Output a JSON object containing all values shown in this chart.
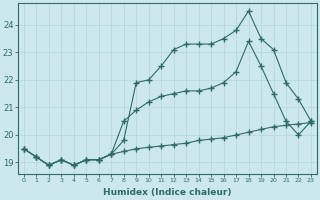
{
  "xlabel": "Humidex (Indice chaleur)",
  "ylabel": "",
  "bg_color": "#cce8ee",
  "line_color": "#2e6b65",
  "grid_color": "#b8d8de",
  "xlim": [
    -0.5,
    23.5
  ],
  "ylim": [
    18.6,
    24.8
  ],
  "x_ticks": [
    0,
    1,
    2,
    3,
    4,
    5,
    6,
    7,
    8,
    9,
    10,
    11,
    12,
    13,
    14,
    15,
    16,
    17,
    18,
    19,
    20,
    21,
    22,
    23
  ],
  "y_ticks": [
    19,
    20,
    21,
    22,
    23,
    24
  ],
  "line1": [
    19.5,
    19.2,
    18.9,
    19.1,
    18.9,
    19.1,
    19.1,
    19.3,
    19.8,
    21.9,
    22.0,
    22.5,
    23.1,
    23.3,
    23.3,
    23.3,
    23.5,
    23.8,
    24.5,
    23.5,
    23.1,
    21.9,
    21.3,
    20.5
  ],
  "line2": [
    19.5,
    19.2,
    18.9,
    19.1,
    18.9,
    19.1,
    19.1,
    19.3,
    20.5,
    20.9,
    21.2,
    21.4,
    21.5,
    21.6,
    21.6,
    21.7,
    21.9,
    22.3,
    23.4,
    22.5,
    21.5,
    20.5,
    20.0,
    20.5
  ],
  "line3": [
    19.5,
    19.2,
    18.9,
    19.1,
    18.9,
    19.1,
    19.1,
    19.3,
    19.4,
    19.5,
    19.55,
    19.6,
    19.65,
    19.7,
    19.8,
    19.85,
    19.9,
    20.0,
    20.1,
    20.2,
    20.3,
    20.35,
    20.4,
    20.45
  ]
}
